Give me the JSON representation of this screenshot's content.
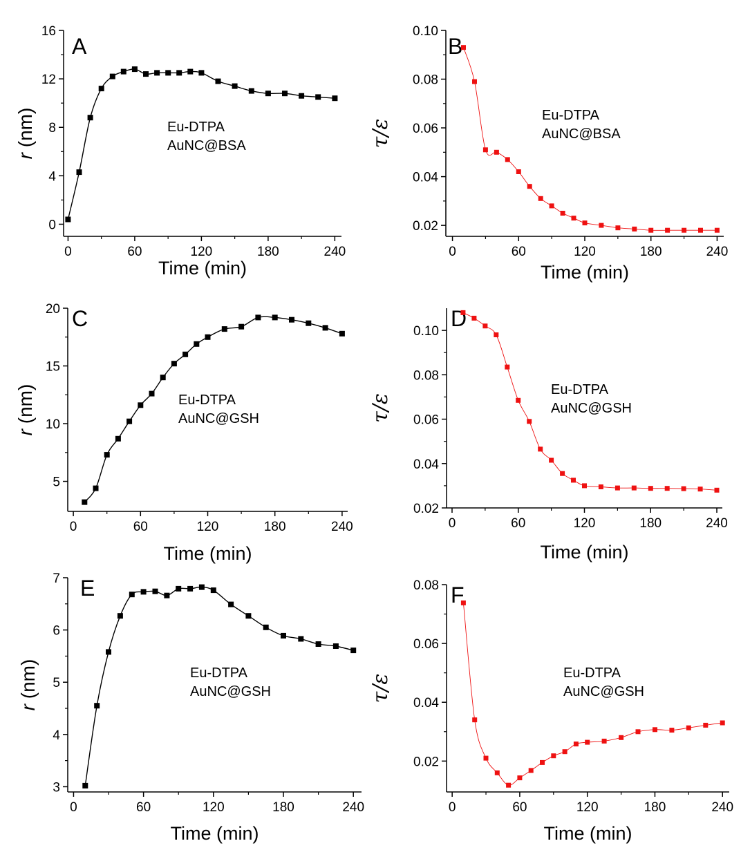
{
  "chart_data": [
    {
      "type": "line",
      "panel_label": "A",
      "xlabel": "Time (min)",
      "ylabel_symbol": "r",
      "ylabel_unit": " (nm)",
      "xlim": [
        -4,
        246
      ],
      "ylim": [
        -1,
        16
      ],
      "xticks": [
        0,
        60,
        120,
        180,
        240
      ],
      "yticks": [
        0,
        4,
        8,
        12,
        16
      ],
      "annotation": [
        "Eu-DTPA",
        "AuNC@BSA"
      ],
      "series": [
        {
          "color": "#000000",
          "x": [
            0,
            10,
            20,
            30,
            40,
            50,
            60,
            70,
            80,
            90,
            100,
            110,
            120,
            135,
            150,
            165,
            180,
            195,
            210,
            225,
            240
          ],
          "y": [
            0.4,
            4.3,
            8.8,
            11.2,
            12.2,
            12.6,
            12.8,
            12.4,
            12.5,
            12.5,
            12.5,
            12.6,
            12.5,
            11.8,
            11.4,
            11.0,
            10.8,
            10.8,
            10.6,
            10.5,
            10.4
          ]
        }
      ]
    },
    {
      "type": "line",
      "panel_label": "B",
      "xlabel": "Time (min)",
      "ylabel": "τ/ε",
      "xlim": [
        -6,
        246
      ],
      "ylim": [
        0.0155,
        0.1
      ],
      "xticks": [
        0,
        60,
        120,
        180,
        240
      ],
      "yticks": [
        0.02,
        0.04,
        0.06,
        0.08,
        0.1
      ],
      "yticklabels": [
        "0.02",
        "0.04",
        "0.06",
        "0.08",
        "0.10"
      ],
      "annotation": [
        "Eu-DTPA",
        "AuNC@BSA"
      ],
      "series": [
        {
          "color": "#ee1111",
          "x": [
            10,
            20,
            30,
            40,
            50,
            60,
            70,
            80,
            90,
            100,
            110,
            120,
            135,
            150,
            165,
            180,
            195,
            210,
            225,
            240
          ],
          "y": [
            0.093,
            0.079,
            0.051,
            0.05,
            0.047,
            0.042,
            0.036,
            0.031,
            0.028,
            0.025,
            0.023,
            0.021,
            0.02,
            0.019,
            0.0185,
            0.018,
            0.018,
            0.018,
            0.018,
            0.018
          ]
        }
      ]
    },
    {
      "type": "line",
      "panel_label": "C",
      "xlabel": "Time (min)",
      "ylabel_symbol": "r",
      "ylabel_unit": " (nm)",
      "xlim": [
        -5,
        245
      ],
      "ylim": [
        2.4,
        20
      ],
      "xticks": [
        0,
        60,
        120,
        180,
        240
      ],
      "yticks": [
        5,
        10,
        15,
        20
      ],
      "annotation": [
        "Eu-DTPA",
        "AuNC@GSH"
      ],
      "series": [
        {
          "color": "#000000",
          "x": [
            10,
            20,
            30,
            40,
            50,
            60,
            70,
            80,
            90,
            100,
            110,
            120,
            135,
            150,
            165,
            180,
            195,
            210,
            225,
            240
          ],
          "y": [
            3.2,
            4.4,
            7.3,
            8.7,
            10.2,
            11.6,
            12.6,
            14.0,
            15.2,
            16.0,
            16.9,
            17.5,
            18.2,
            18.4,
            19.2,
            19.2,
            19.0,
            18.7,
            18.3,
            17.8
          ]
        }
      ]
    },
    {
      "type": "line",
      "panel_label": "D",
      "xlabel": "Time (min)",
      "ylabel": "τ/ε",
      "xlim": [
        -5,
        245
      ],
      "ylim": [
        0.02,
        0.11
      ],
      "xticks": [
        0,
        60,
        120,
        180,
        240
      ],
      "yticks": [
        0.02,
        0.04,
        0.06,
        0.08,
        0.1
      ],
      "yticklabels": [
        "0.02",
        "0.04",
        "0.06",
        "0.08",
        "0.10"
      ],
      "annotation": [
        "Eu-DTPA",
        "AuNC@GSH"
      ],
      "series": [
        {
          "color": "#ee1111",
          "x": [
            10,
            20,
            30,
            40,
            50,
            60,
            70,
            80,
            90,
            100,
            110,
            120,
            135,
            150,
            165,
            180,
            195,
            210,
            225,
            240
          ],
          "y": [
            0.108,
            0.1055,
            0.102,
            0.098,
            0.0835,
            0.0685,
            0.059,
            0.0465,
            0.0415,
            0.0355,
            0.0325,
            0.03,
            0.0295,
            0.029,
            0.029,
            0.0288,
            0.0288,
            0.0287,
            0.0285,
            0.028
          ]
        }
      ]
    },
    {
      "type": "line",
      "panel_label": "E",
      "xlabel": "Time (min)",
      "ylabel_symbol": "r",
      "ylabel_unit": " (nm)",
      "xlim": [
        -5,
        247
      ],
      "ylim": [
        2.9,
        7
      ],
      "xticks": [
        0,
        60,
        120,
        180,
        240
      ],
      "yticks": [
        3,
        4,
        5,
        6,
        7
      ],
      "annotation": [
        "Eu-DTPA",
        "AuNC@GSH"
      ],
      "series": [
        {
          "color": "#000000",
          "x": [
            10,
            20,
            30,
            40,
            50,
            60,
            70,
            80,
            90,
            100,
            110,
            120,
            135,
            150,
            165,
            180,
            195,
            210,
            225,
            240
          ],
          "y": [
            3.02,
            4.55,
            5.58,
            6.27,
            6.68,
            6.73,
            6.74,
            6.66,
            6.79,
            6.79,
            6.82,
            6.76,
            6.49,
            6.27,
            6.05,
            5.89,
            5.83,
            5.73,
            5.69,
            5.61
          ]
        }
      ]
    },
    {
      "type": "line",
      "panel_label": "F",
      "xlabel": "Time (min)",
      "ylabel": "τ/ε",
      "xlim": [
        -5,
        246
      ],
      "ylim": [
        0.0095,
        0.08
      ],
      "xticks": [
        0,
        60,
        120,
        180,
        240
      ],
      "yticks": [
        0.02,
        0.04,
        0.06,
        0.08
      ],
      "yticklabels": [
        "0.02",
        "0.04",
        "0.06",
        "0.08"
      ],
      "annotation": [
        "Eu-DTPA",
        "AuNC@GSH"
      ],
      "series": [
        {
          "color": "#ee1111",
          "x": [
            10,
            20,
            30,
            40,
            50,
            60,
            70,
            80,
            90,
            100,
            110,
            120,
            135,
            150,
            165,
            180,
            195,
            210,
            225,
            240
          ],
          "y": [
            0.0738,
            0.034,
            0.021,
            0.016,
            0.0118,
            0.0143,
            0.0168,
            0.0195,
            0.0218,
            0.0232,
            0.0258,
            0.0264,
            0.0268,
            0.028,
            0.03,
            0.0307,
            0.0305,
            0.0313,
            0.0322,
            0.033
          ]
        }
      ]
    }
  ]
}
